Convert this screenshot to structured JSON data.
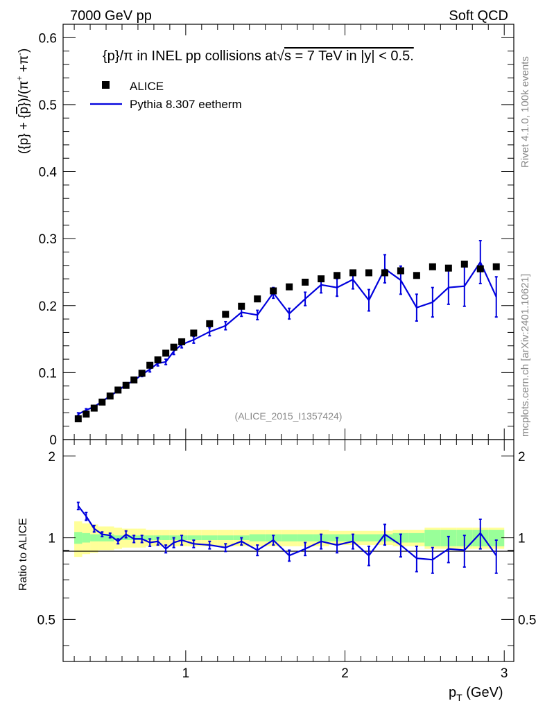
{
  "header": {
    "left": "7000 GeV pp",
    "right": "Soft QCD"
  },
  "side": {
    "rivet": "Rivet 4.1.0,  100k events",
    "mcplots": "mcplots.cern.ch [arXiv:2401.10621]"
  },
  "chart_data": {
    "type": "scatter",
    "title": "{p}/π in INEL pp collisions at√s = 7 TeV in |y| < 0.5.",
    "title_parts": {
      "main": "{p}/π in INEL pp collisions at",
      "sqrt": "√",
      "s_eq": "s =  7 TeV in |y| < 0.5."
    },
    "ylabel_parts": {
      "a": "({p} + {",
      "bar": "p",
      "b": "})/(π",
      "sup1": "+",
      "c": " +π",
      "sup2": "-",
      "d": ")"
    },
    "xlabel_parts": {
      "p": "p",
      "sub": "T",
      "unit": " (GeV)"
    },
    "ratio_ylabel": "Ratio to ALICE",
    "watermark": "(ALICE_2015_I1357424)",
    "xlim": [
      0.23,
      3.06
    ],
    "ylim": [
      0,
      0.62
    ],
    "ratio_ylim": [
      0.35,
      2.3
    ],
    "x_ticks": [
      {
        "v": 1,
        "label": "1"
      },
      {
        "v": 2,
        "label": "2"
      },
      {
        "v": 3,
        "label": "3"
      }
    ],
    "y_ticks": [
      {
        "v": 0,
        "label": "0"
      },
      {
        "v": 0.1,
        "label": "0.1"
      },
      {
        "v": 0.2,
        "label": "0.2"
      },
      {
        "v": 0.3,
        "label": "0.3"
      },
      {
        "v": 0.4,
        "label": "0.4"
      },
      {
        "v": 0.5,
        "label": "0.5"
      },
      {
        "v": 0.6,
        "label": "0.6"
      }
    ],
    "ratio_ticks": [
      {
        "v": 0.5,
        "label": "0.5"
      },
      {
        "v": 1,
        "label": "1"
      },
      {
        "v": 2,
        "label": "2"
      }
    ],
    "legend": [
      {
        "name": "ALICE",
        "style": "marker"
      },
      {
        "name": "Pythia 8.307 eetherm",
        "style": "line"
      }
    ],
    "colors": {
      "data": "#000000",
      "mc": "#0000dd",
      "band_inner": "#99ff99",
      "band_outer": "#ffff99"
    },
    "alice": {
      "x": [
        0.325,
        0.375,
        0.425,
        0.475,
        0.525,
        0.575,
        0.625,
        0.675,
        0.725,
        0.775,
        0.825,
        0.875,
        0.925,
        0.975,
        1.05,
        1.15,
        1.25,
        1.35,
        1.45,
        1.55,
        1.65,
        1.75,
        1.85,
        1.95,
        2.05,
        2.15,
        2.25,
        2.35,
        2.45,
        2.55,
        2.65,
        2.75,
        2.85,
        2.95
      ],
      "y": [
        0.031,
        0.038,
        0.047,
        0.056,
        0.065,
        0.074,
        0.081,
        0.089,
        0.099,
        0.111,
        0.119,
        0.129,
        0.138,
        0.146,
        0.159,
        0.173,
        0.187,
        0.199,
        0.21,
        0.222,
        0.228,
        0.235,
        0.24,
        0.245,
        0.249,
        0.249,
        0.249,
        0.252,
        0.245,
        0.258,
        0.256,
        0.262,
        0.255,
        0.258
      ],
      "stat_rel": [
        0.05,
        0.04,
        0.03,
        0.03,
        0.03,
        0.02,
        0.02,
        0.02,
        0.02,
        0.02,
        0.02,
        0.02,
        0.02,
        0.02,
        0.02,
        0.02,
        0.02,
        0.02,
        0.03,
        0.03,
        0.03,
        0.03,
        0.03,
        0.03,
        0.03,
        0.03,
        0.03,
        0.04,
        0.04,
        0.07,
        0.07,
        0.07,
        0.07,
        0.07
      ],
      "tot_rel": [
        0.15,
        0.13,
        0.12,
        0.1,
        0.1,
        0.09,
        0.08,
        0.08,
        0.08,
        0.07,
        0.07,
        0.07,
        0.07,
        0.07,
        0.07,
        0.07,
        0.07,
        0.07,
        0.07,
        0.07,
        0.07,
        0.07,
        0.07,
        0.06,
        0.06,
        0.06,
        0.06,
        0.07,
        0.07,
        0.09,
        0.09,
        0.09,
        0.09,
        0.09
      ]
    },
    "pythia": {
      "x": [
        0.325,
        0.375,
        0.425,
        0.475,
        0.525,
        0.575,
        0.625,
        0.675,
        0.725,
        0.775,
        0.825,
        0.875,
        0.925,
        0.975,
        1.05,
        1.15,
        1.25,
        1.35,
        1.45,
        1.55,
        1.65,
        1.75,
        1.85,
        1.95,
        2.05,
        2.15,
        2.25,
        2.35,
        2.45,
        2.55,
        2.65,
        2.75,
        2.85,
        2.95
      ],
      "y": [
        0.038,
        0.044,
        0.049,
        0.057,
        0.065,
        0.073,
        0.082,
        0.088,
        0.097,
        0.105,
        0.114,
        0.116,
        0.132,
        0.142,
        0.149,
        0.161,
        0.17,
        0.19,
        0.186,
        0.219,
        0.188,
        0.21,
        0.231,
        0.227,
        0.239,
        0.208,
        0.255,
        0.238,
        0.197,
        0.205,
        0.227,
        0.229,
        0.265,
        0.213
      ],
      "err": [
        0.002,
        0.002,
        0.002,
        0.002,
        0.002,
        0.002,
        0.003,
        0.003,
        0.003,
        0.004,
        0.004,
        0.004,
        0.005,
        0.005,
        0.005,
        0.006,
        0.006,
        0.006,
        0.007,
        0.008,
        0.008,
        0.01,
        0.012,
        0.013,
        0.014,
        0.016,
        0.021,
        0.021,
        0.02,
        0.022,
        0.025,
        0.03,
        0.032,
        0.03
      ],
      "ratio": [
        1.31,
        1.2,
        1.08,
        1.03,
        1.02,
        0.97,
        1.03,
        0.99,
        0.99,
        0.96,
        0.97,
        0.91,
        0.96,
        0.98,
        0.95,
        0.94,
        0.92,
        0.97,
        0.9,
        0.98,
        0.86,
        0.91,
        0.97,
        0.94,
        0.97,
        0.86,
        1.03,
        0.94,
        0.84,
        0.83,
        0.91,
        0.9,
        1.04,
        0.86
      ],
      "ratio_err": [
        0.04,
        0.04,
        0.03,
        0.02,
        0.02,
        0.02,
        0.03,
        0.03,
        0.03,
        0.03,
        0.03,
        0.03,
        0.04,
        0.04,
        0.03,
        0.03,
        0.03,
        0.03,
        0.04,
        0.04,
        0.04,
        0.05,
        0.06,
        0.06,
        0.06,
        0.07,
        0.09,
        0.09,
        0.09,
        0.09,
        0.1,
        0.12,
        0.13,
        0.12
      ]
    }
  }
}
